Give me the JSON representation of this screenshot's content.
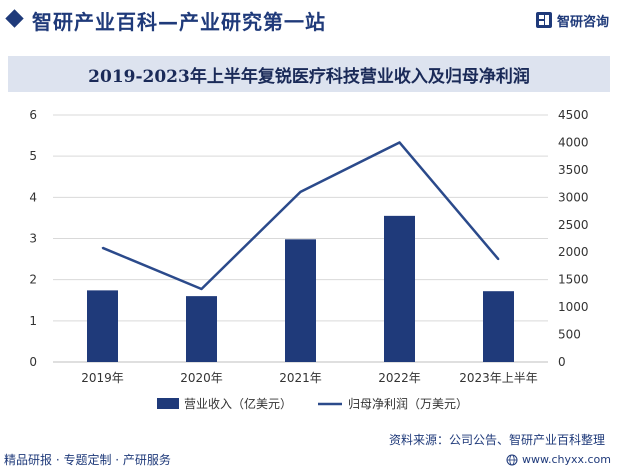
{
  "header": {
    "site_name": "智研产业百科—产业研究第一站",
    "logo_text": "智研咨询"
  },
  "footer": {
    "left_text": "精品研报 · 专题定制 · 产研服务",
    "source": "资料来源：公司公告、智研产业百科整理",
    "url": "www.chyxx.com"
  },
  "colors": {
    "brand": "#1f3a7a",
    "bar": "#1f3a7a",
    "line": "#2b4a8b",
    "title_bg": "#dde3ef"
  },
  "chart_data": {
    "type": "bar",
    "title": "2019-2023年上半年复锐医疗科技营业收入及归母净利润",
    "categories": [
      "2019年",
      "2020年",
      "2021年",
      "2022年",
      "2023年上半年"
    ],
    "series": [
      {
        "name": "营业收入（亿美元）",
        "type": "bar",
        "axis": "left",
        "values": [
          1.74,
          1.6,
          2.98,
          3.55,
          1.72
        ]
      },
      {
        "name": "归母净利润（万美元）",
        "type": "line",
        "axis": "right",
        "values": [
          2080,
          1330,
          3100,
          4000,
          1870
        ]
      }
    ],
    "y_left": {
      "min": 0,
      "max": 6,
      "ticks": [
        0,
        1,
        2,
        3,
        4,
        5,
        6
      ]
    },
    "y_right": {
      "min": 0,
      "max": 4500,
      "ticks": [
        0,
        500,
        1000,
        1500,
        2000,
        2500,
        3000,
        3500,
        4000,
        4500
      ]
    },
    "grid": true,
    "legend_position": "bottom"
  }
}
